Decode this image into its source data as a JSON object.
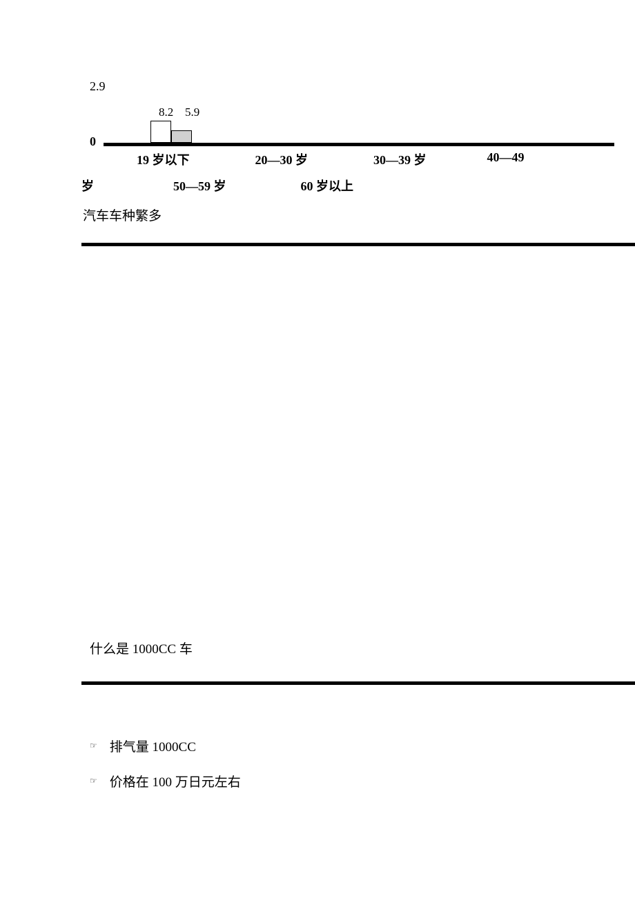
{
  "chart": {
    "top_label": "2.9",
    "y_zero": "0",
    "bar_labels": [
      "8.2",
      "5.9"
    ],
    "bar_colors": [
      "#ffffff",
      "#d0d0d0"
    ],
    "axis_color": "#000000",
    "x_categories_row1": [
      "19 岁以下",
      "20—30 岁",
      "30—39 岁",
      "40—49"
    ],
    "x_categories_row2": [
      "岁",
      "50—59 岁",
      "60 岁以上"
    ]
  },
  "sections": {
    "subtitle_1": "汽车车种繁多",
    "subtitle_2": "什么是 1000CC 车"
  },
  "bullets": [
    {
      "icon": "☞",
      "text": "排气量 1000CC"
    },
    {
      "icon": "☞",
      "text": "价格在 100 万日元左右"
    }
  ],
  "style": {
    "background_color": "#ffffff",
    "text_color": "#000000",
    "divider_color": "#000000"
  }
}
